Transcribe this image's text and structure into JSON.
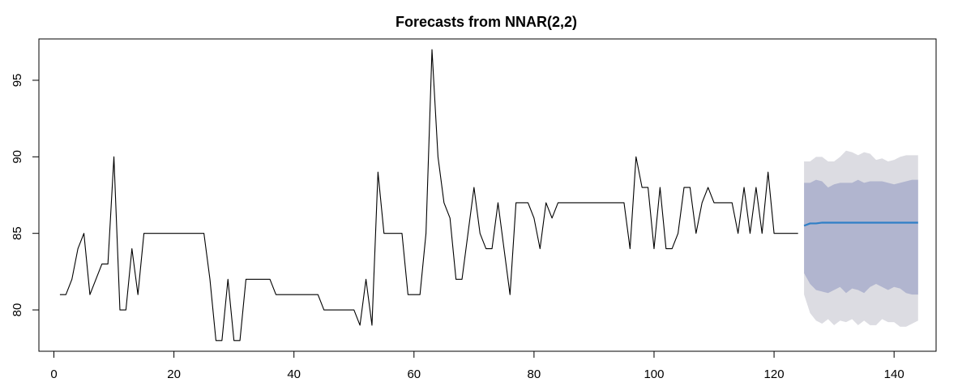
{
  "chart_data": {
    "type": "line",
    "title": "Forecasts from NNAR(2,2)",
    "xlabel": "",
    "ylabel": "",
    "xlim": [
      -2.5,
      147
    ],
    "ylim": [
      77.3,
      97.7
    ],
    "x_ticks": [
      0,
      20,
      40,
      60,
      80,
      100,
      120,
      140
    ],
    "y_ticks": [
      80,
      85,
      90,
      95
    ],
    "grid": false,
    "series": [
      {
        "role": "observed",
        "color": "#000000",
        "x": [
          1,
          2,
          3,
          4,
          5,
          6,
          7,
          8,
          9,
          10,
          11,
          12,
          13,
          14,
          15,
          16,
          17,
          18,
          19,
          20,
          21,
          22,
          23,
          24,
          25,
          26,
          27,
          28,
          29,
          30,
          31,
          32,
          33,
          34,
          35,
          36,
          37,
          38,
          39,
          40,
          41,
          42,
          43,
          44,
          45,
          46,
          47,
          48,
          49,
          50,
          51,
          52,
          53,
          54,
          55,
          56,
          57,
          58,
          59,
          60,
          61,
          62,
          63,
          64,
          65,
          66,
          67,
          68,
          69,
          70,
          71,
          72,
          73,
          74,
          75,
          76,
          77,
          78,
          79,
          80,
          81,
          82,
          83,
          84,
          85,
          86,
          87,
          88,
          89,
          90,
          91,
          92,
          93,
          94,
          95,
          96,
          97,
          98,
          99,
          100,
          101,
          102,
          103,
          104,
          105,
          106,
          107,
          108,
          109,
          110,
          111,
          112,
          113,
          114,
          115,
          116,
          117,
          118,
          119,
          120,
          121,
          122,
          123,
          124
        ],
        "y": [
          81,
          81,
          82,
          84,
          85,
          81,
          82,
          83,
          83,
          90,
          80,
          80,
          84,
          81,
          85,
          85,
          85,
          85,
          85,
          85,
          85,
          85,
          85,
          85,
          85,
          82,
          78,
          78,
          82,
          78,
          78,
          82,
          82,
          82,
          82,
          82,
          81,
          81,
          81,
          81,
          81,
          81,
          81,
          81,
          80,
          80,
          80,
          80,
          80,
          80,
          79,
          82,
          79,
          89,
          85,
          85,
          85,
          85,
          81,
          81,
          81,
          85,
          97,
          90,
          87,
          86,
          82,
          82,
          85,
          88,
          85,
          84,
          84,
          87,
          84,
          81,
          87,
          87,
          87,
          86,
          84,
          87,
          86,
          87,
          87,
          87,
          87,
          87,
          87,
          87,
          87,
          87,
          87,
          87,
          87,
          84,
          90,
          88,
          88,
          84,
          88,
          84,
          84,
          85,
          88,
          88,
          85,
          87,
          88,
          87,
          87,
          87,
          87,
          85,
          88,
          85,
          88,
          85,
          89,
          85,
          85,
          85,
          85,
          85
        ]
      },
      {
        "role": "forecast",
        "color": "#2f7fc6",
        "x": [
          125,
          126,
          127,
          128,
          129,
          130,
          131,
          132,
          133,
          134,
          135,
          136,
          137,
          138,
          139,
          140,
          141,
          142,
          143,
          144
        ],
        "y": [
          85.5,
          85.65,
          85.65,
          85.7,
          85.7,
          85.7,
          85.7,
          85.7,
          85.7,
          85.7,
          85.7,
          85.7,
          85.7,
          85.7,
          85.7,
          85.7,
          85.7,
          85.7,
          85.7,
          85.7
        ]
      }
    ],
    "intervals": [
      {
        "level": 95,
        "color": "#dcdce2",
        "x": [
          125,
          126,
          127,
          128,
          129,
          130,
          131,
          132,
          133,
          134,
          135,
          136,
          137,
          138,
          139,
          140,
          141,
          142,
          143,
          144
        ],
        "lower": [
          81.0,
          79.8,
          79.3,
          79.1,
          79.4,
          79.0,
          79.3,
          79.2,
          79.4,
          79.0,
          79.3,
          79.0,
          79.0,
          79.4,
          79.2,
          79.2,
          78.9,
          78.9,
          79.1,
          79.3
        ],
        "upper": [
          89.7,
          89.7,
          90.0,
          90.0,
          89.7,
          89.7,
          90.0,
          90.4,
          90.3,
          90.1,
          90.3,
          90.2,
          89.8,
          89.9,
          89.7,
          89.8,
          90.0,
          90.1,
          90.1,
          90.1
        ]
      },
      {
        "level": 80,
        "color": "#b1b5cf",
        "x": [
          125,
          126,
          127,
          128,
          129,
          130,
          131,
          132,
          133,
          134,
          135,
          136,
          137,
          138,
          139,
          140,
          141,
          142,
          143,
          144
        ],
        "lower": [
          82.4,
          81.7,
          81.3,
          81.2,
          81.1,
          81.3,
          81.5,
          81.1,
          81.4,
          81.3,
          81.1,
          81.5,
          81.7,
          81.5,
          81.3,
          81.5,
          81.4,
          81.1,
          81.0,
          81.0
        ],
        "upper": [
          88.3,
          88.3,
          88.5,
          88.4,
          88.0,
          88.2,
          88.3,
          88.3,
          88.3,
          88.5,
          88.3,
          88.4,
          88.4,
          88.4,
          88.3,
          88.2,
          88.3,
          88.4,
          88.5,
          88.5
        ]
      }
    ]
  }
}
